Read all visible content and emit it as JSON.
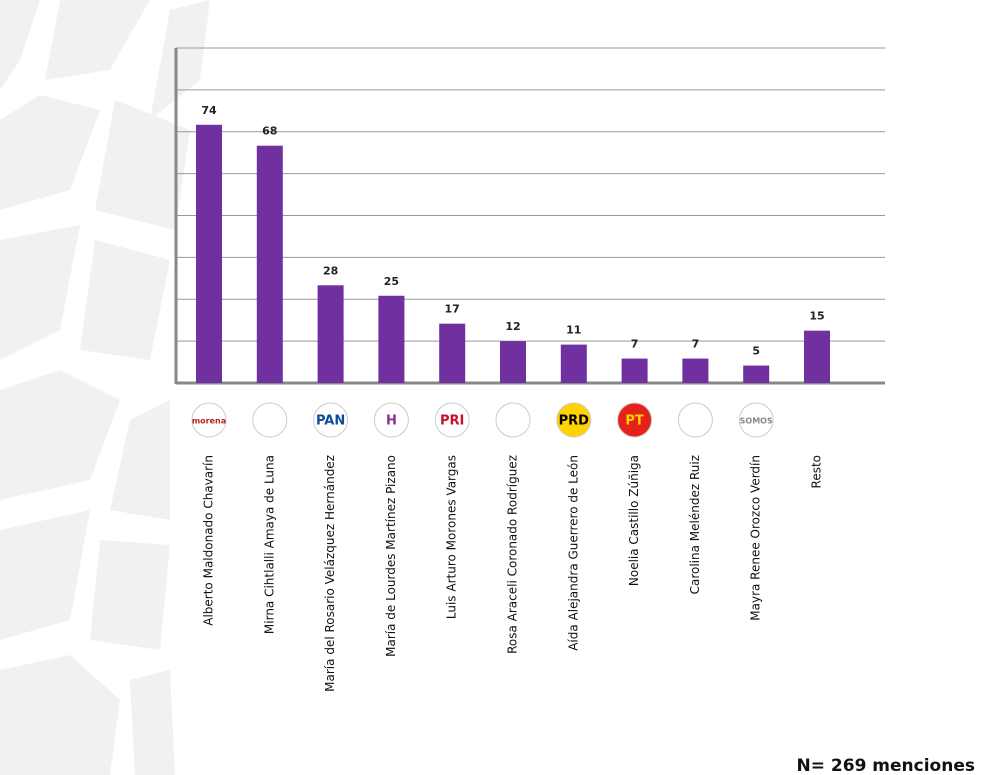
{
  "chart_data": {
    "type": "bar",
    "categories": [
      "Alberto Maldonado Chavarín",
      "Mirna Cihtlalli Amaya de Luna",
      "María del Rosario Velázquez Hernández",
      "María de Lourdes Martínez Pizano",
      "Luis Arturo Morones Vargas",
      "Rosa Araceli Coronado Rodríguez",
      "Aída Alejandra Guerrero de León",
      "Noelia Castillo Zúñiga",
      "Carolina Meléndez Ruiz",
      "Mayra Renee Orozco Verdín",
      "Resto"
    ],
    "values": [
      74,
      68,
      28,
      25,
      17,
      12,
      11,
      7,
      7,
      5,
      15
    ],
    "logos": [
      "morena",
      null,
      "PAN",
      "H",
      "PRI",
      null,
      "PRD",
      "PT",
      null,
      "SOMOS",
      null
    ],
    "color": "#7030a0",
    "ylim": [
      0,
      96
    ],
    "yticks": [
      0,
      12,
      24,
      36,
      48,
      60,
      72,
      84,
      96
    ],
    "grid": true,
    "annotation": "N= 269 menciones"
  }
}
